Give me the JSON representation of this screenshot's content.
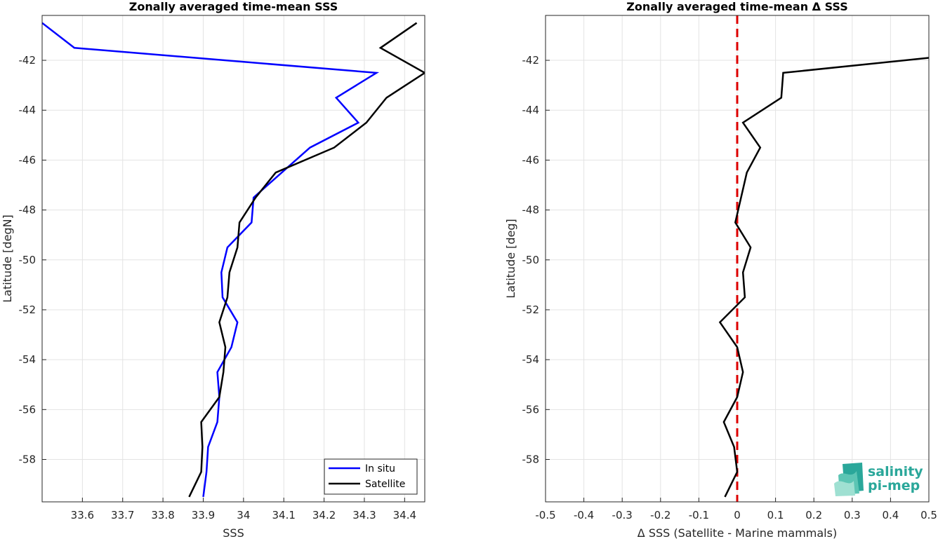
{
  "chart_data": [
    {
      "type": "line",
      "title": "Zonally averaged time-mean SSS",
      "xlabel": "SSS",
      "ylabel": "Latitude [degN]",
      "xlim": [
        33.5,
        34.45
      ],
      "ylim": [
        -59.7,
        -40.2
      ],
      "xticks": [
        33.6,
        33.7,
        33.8,
        33.9,
        34,
        34.1,
        34.2,
        34.3,
        34.4
      ],
      "xtick_labels": [
        "33.6",
        "33.7",
        "33.8",
        "33.9",
        "34",
        "34.1",
        "34.2",
        "34.3",
        "34.4"
      ],
      "yticks": [
        -58,
        -56,
        -54,
        -52,
        -50,
        -48,
        -46,
        -44,
        -42
      ],
      "ytick_labels": [
        "-58",
        "-56",
        "-54",
        "-52",
        "-50",
        "-48",
        "-46",
        "-44",
        "-42"
      ],
      "grid": true,
      "legend": "bottom-right",
      "series": [
        {
          "name": "In situ",
          "color": "#0000ff",
          "x": [
            33.5,
            33.58,
            34.33,
            34.23,
            34.285,
            34.165,
            34.095,
            34.025,
            34.02,
            33.96,
            33.945,
            33.948,
            33.985,
            33.97,
            33.935,
            33.94,
            33.935,
            33.912,
            33.908,
            33.9
          ],
          "y": [
            -40.5,
            -41.5,
            -42.5,
            -43.5,
            -44.5,
            -45.5,
            -46.5,
            -47.5,
            -48.5,
            -49.5,
            -50.5,
            -51.5,
            -52.5,
            -53.5,
            -54.5,
            -55.5,
            -56.5,
            -57.5,
            -58.5,
            -59.5
          ]
        },
        {
          "name": "Satellite",
          "color": "#000000",
          "x": [
            34.43,
            34.34,
            34.45,
            34.355,
            34.305,
            34.225,
            34.08,
            34.03,
            33.99,
            33.985,
            33.965,
            33.96,
            33.94,
            33.955,
            33.95,
            33.94,
            33.895,
            33.898,
            33.895,
            33.865
          ],
          "y": [
            -40.5,
            -41.5,
            -42.5,
            -43.5,
            -44.5,
            -45.5,
            -46.5,
            -47.5,
            -48.5,
            -49.5,
            -50.5,
            -51.5,
            -52.5,
            -53.5,
            -54.5,
            -55.5,
            -56.5,
            -57.5,
            -58.5,
            -59.5
          ]
        }
      ]
    },
    {
      "type": "line",
      "title": "Zonally averaged time-mean Δ SSS",
      "xlabel": "Δ SSS (Satellite - Marine mammals)",
      "ylabel": "Latitude [deg]",
      "xlim": [
        -0.5,
        0.5
      ],
      "ylim": [
        -59.7,
        -40.2
      ],
      "xticks": [
        -0.5,
        -0.4,
        -0.3,
        -0.2,
        -0.1,
        0,
        0.1,
        0.2,
        0.3,
        0.4,
        0.5
      ],
      "xtick_labels": [
        "-0.5",
        "-0.4",
        "-0.3",
        "-0.2",
        "-0.1",
        "0",
        "0.1",
        "0.2",
        "0.3",
        "0.4",
        "0.5"
      ],
      "yticks": [
        -58,
        -56,
        -54,
        -52,
        -50,
        -48,
        -46,
        -44,
        -42
      ],
      "ytick_labels": [
        "-58",
        "-56",
        "-54",
        "-52",
        "-50",
        "-48",
        "-46",
        "-44",
        "-42"
      ],
      "grid": true,
      "reference_line": {
        "x": 0,
        "color": "#dd0000",
        "style": "dashed"
      },
      "series": [
        {
          "color": "#000000",
          "x": [
            0.5,
            0.12,
            0.115,
            0.015,
            0.06,
            0.025,
            -0.005,
            0.035,
            0.015,
            0.02,
            -0.045,
            0.0,
            0.015,
            0.0,
            -0.035,
            -0.008,
            0.0,
            -0.032
          ],
          "y": [
            -41.9,
            -42.5,
            -43.5,
            -44.5,
            -45.5,
            -46.5,
            -48.5,
            -49.5,
            -50.5,
            -51.5,
            -52.5,
            -53.5,
            -54.5,
            -55.5,
            -56.5,
            -57.5,
            -58.5,
            -59.5
          ]
        }
      ]
    }
  ],
  "logo": {
    "line1": "salinity",
    "line2": "pi-mep",
    "color": "#2aa79a"
  }
}
